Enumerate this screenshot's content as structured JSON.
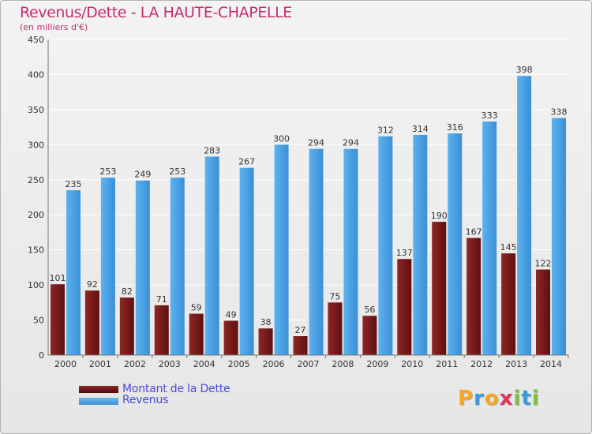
{
  "title": "Revenus/Dette - LA HAUTE-CHAPELLE",
  "subtitle": "(en milliers d'€)",
  "colors": {
    "dette": "#7a1d1d",
    "revenus": "#4aa3e6",
    "title": "#c22f6e",
    "legend_text": "#4a4ad6",
    "grid": "#ffffff",
    "axis_text": "#333333"
  },
  "legend": {
    "dette_label": "Montant de la Dette",
    "revenus_label": "Revenus"
  },
  "logo": {
    "letters": [
      "P",
      "r",
      "o",
      "x",
      "i",
      "t",
      "i"
    ],
    "colors": [
      "#f5a623",
      "#3a9ad9",
      "#f5a623",
      "#e2315d",
      "#7ac143",
      "#3a9ad9",
      "#7ac143"
    ]
  },
  "chart_data": {
    "type": "bar",
    "title": "Revenus/Dette - LA HAUTE-CHAPELLE",
    "subtitle": "(en milliers d'€)",
    "categories": [
      "2000",
      "2001",
      "2002",
      "2003",
      "2004",
      "2005",
      "2006",
      "2007",
      "2008",
      "2009",
      "2010",
      "2011",
      "2012",
      "2013",
      "2014"
    ],
    "series": [
      {
        "name": "Montant de la Dette",
        "values": [
          101,
          92,
          82,
          71,
          59,
          49,
          38,
          27,
          75,
          56,
          137,
          190,
          167,
          145,
          122
        ]
      },
      {
        "name": "Revenus",
        "values": [
          235,
          253,
          249,
          253,
          283,
          267,
          300,
          294,
          294,
          312,
          314,
          316,
          333,
          398,
          338
        ]
      }
    ],
    "ylim": [
      0,
      450
    ],
    "yticks": [
      0,
      50,
      100,
      150,
      200,
      250,
      300,
      350,
      400,
      450
    ],
    "grid": true,
    "legend_position": "bottom-left"
  }
}
